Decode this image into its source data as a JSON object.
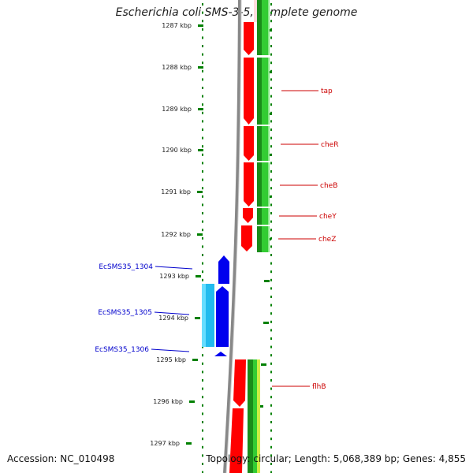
{
  "title": "Escherichia coli SMS-3-5, complete genome",
  "footer": {
    "accession": "Accession: NC_010498",
    "topology": "Topology: circular; Length: 5,068,389 bp; Genes: 4,855"
  },
  "colors": {
    "scale": "#008000",
    "forward_gene": "#ff0000",
    "reverse_gene": "#0000ee",
    "reverse_gene_light": "#22bbee",
    "label_red": "#cc0000",
    "label_blue": "#0000cc",
    "backbone": "#888888"
  },
  "scale_ticks": [
    "1287 kbp",
    "1288 kbp",
    "1289 kbp",
    "1290 kbp",
    "1291 kbp",
    "1292 kbp",
    "1293 kbp",
    "1294 kbp",
    "1295 kbp",
    "1296 kbp",
    "1297 kbp"
  ],
  "gene_labels_right": [
    "tap",
    "cheR",
    "cheB",
    "cheY",
    "cheZ",
    "flhB"
  ],
  "gene_labels_left": [
    "EcSMS35_1304",
    "EcSMS35_1305",
    "EcSMS35_1306"
  ]
}
